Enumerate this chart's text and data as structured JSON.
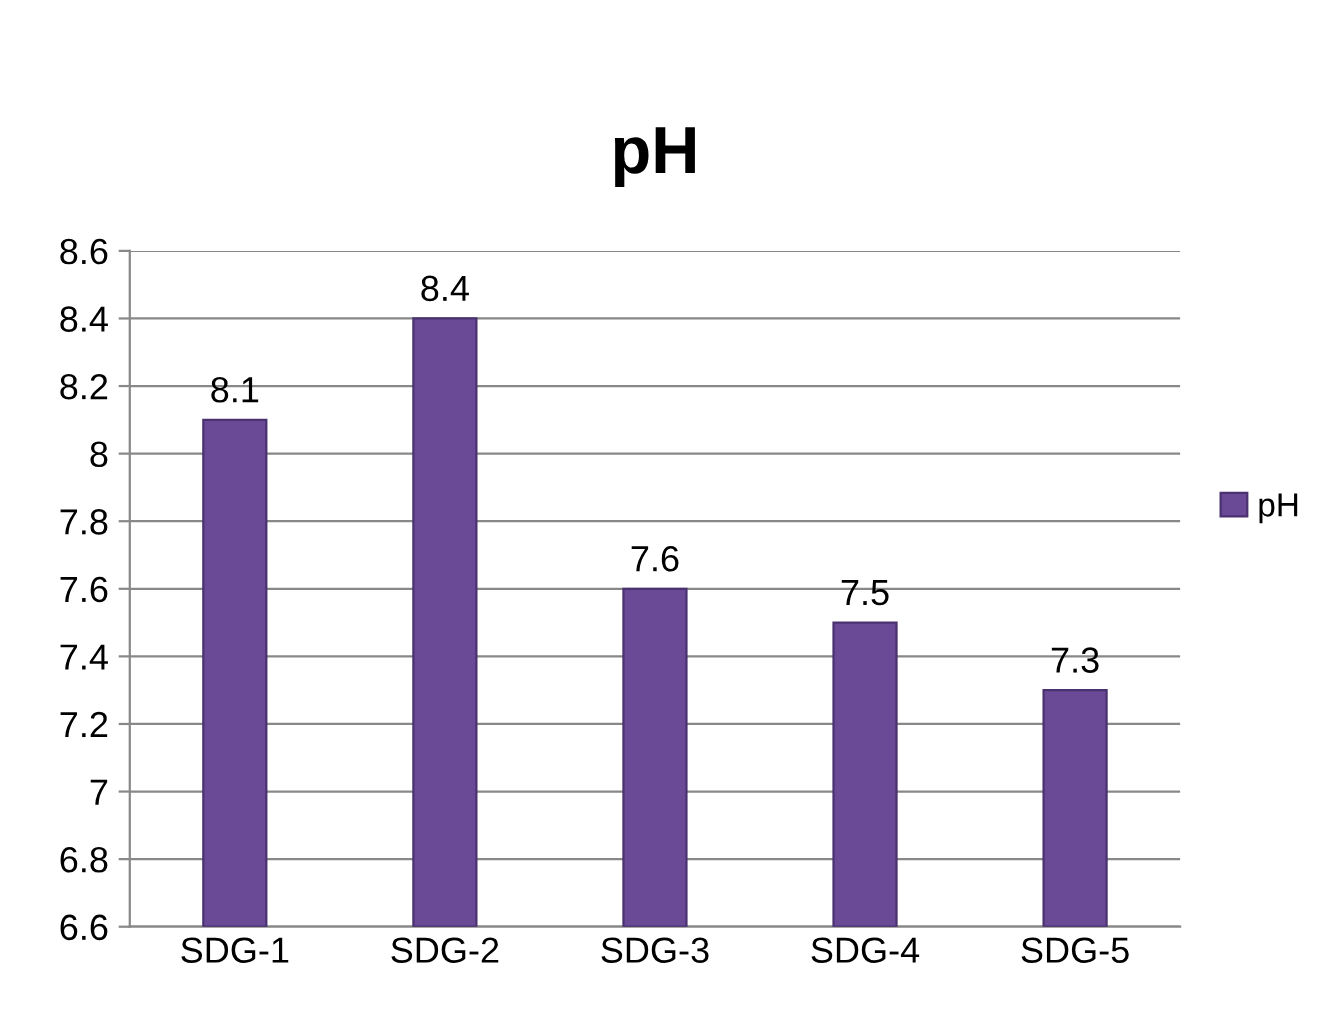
{
  "chart_data": {
    "type": "bar",
    "title": "pH",
    "categories": [
      "SDG-1",
      "SDG-2",
      "SDG-3",
      "SDG-4",
      "SDG-5"
    ],
    "series": [
      {
        "name": "pH",
        "color": "#6a4a96",
        "values": [
          8.1,
          8.4,
          7.6,
          7.5,
          7.3
        ]
      }
    ],
    "ylim": [
      6.6,
      8.6
    ],
    "yticks": [
      6.6,
      6.8,
      7,
      7.2,
      7.4,
      7.6,
      7.8,
      8,
      8.2,
      8.4,
      8.6
    ],
    "grid": "y",
    "legend": "right",
    "data_labels": true
  }
}
